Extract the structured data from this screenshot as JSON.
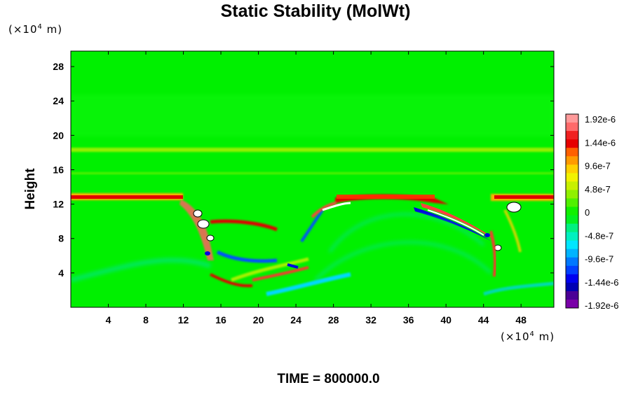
{
  "chart_data": {
    "type": "heatmap",
    "title": "Static Stability (MolWt)",
    "ylabel": "Height",
    "xlabel": "",
    "x_unit": {
      "prefix": "(×10",
      "exp": "4",
      "suffix": " m)"
    },
    "y_unit": {
      "prefix": "(×10",
      "exp": "4",
      "suffix": " m)"
    },
    "xlim": [
      0,
      51.5
    ],
    "ylim": [
      0,
      29.8
    ],
    "x_ticks": [
      4,
      8,
      12,
      16,
      20,
      24,
      28,
      32,
      36,
      40,
      44,
      48
    ],
    "y_ticks": [
      4,
      8,
      12,
      16,
      20,
      24,
      28
    ],
    "colorbar": {
      "labels": [
        "1.92e-6",
        "1.44e-6",
        "9.6e-7",
        "4.8e-7",
        "0",
        "-4.8e-7",
        "-9.6e-7",
        "-1.44e-6",
        "-1.92e-6"
      ],
      "colors": [
        "#ff9a9a",
        "#ff6a6a",
        "#f02020",
        "#e60000",
        "#ff6000",
        "#ff9a00",
        "#ffd000",
        "#f2f200",
        "#c8f000",
        "#90f000",
        "#50f000",
        "#10f000",
        "#00f020",
        "#00f080",
        "#00f0c0",
        "#00e6ff",
        "#00b4ff",
        "#0078ff",
        "#0040ff",
        "#0000f0",
        "#0000b4",
        "#4b0096",
        "#7a00a8"
      ]
    },
    "features": [
      {
        "name": "stable-layer-left",
        "sign": "positive",
        "x": [
          0,
          11.5
        ],
        "y": [
          12.3,
          13.4
        ]
      },
      {
        "name": "stable-layer-middle",
        "sign": "positive",
        "x": [
          27.5,
          38
        ],
        "y": [
          12.2,
          13.4
        ]
      },
      {
        "name": "stable-layer-right",
        "sign": "positive",
        "x": [
          46,
          51.5
        ],
        "y": [
          12.5,
          13.4
        ]
      },
      {
        "name": "gravity-wave-band",
        "sign": "positive",
        "x": [
          0,
          51.5
        ],
        "y": [
          18.1,
          18.7
        ]
      },
      {
        "name": "descending-front",
        "sign": "positive",
        "x": [
          36,
          43.5
        ],
        "y": [
          8,
          12
        ]
      }
    ],
    "grid": false,
    "legend": "colorbar-right"
  },
  "footer": {
    "time_label": "TIME = 800000.0"
  }
}
